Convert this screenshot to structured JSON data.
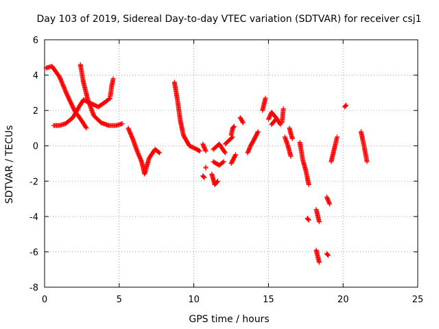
{
  "chart_data": {
    "type": "scatter",
    "title": "Day 103 of 2019, Sidereal Day-to-day VTEC variation (SDTVAR) for receiver csj1",
    "xlabel": "GPS time / hours",
    "ylabel": "SDTVAR / TECUs",
    "xlim": [
      0,
      25
    ],
    "ylim": [
      -8,
      6
    ],
    "xticks": [
      0,
      5,
      10,
      15,
      20,
      25
    ],
    "yticks": [
      -8,
      -6,
      -4,
      -2,
      0,
      2,
      4,
      6
    ],
    "grid": true,
    "marker": "+",
    "color": "#ff0000",
    "tracks": [
      {
        "x": [
          0.1,
          0.5,
          1.0,
          1.5,
          2.0,
          2.5,
          2.8
        ],
        "y": [
          4.4,
          4.5,
          3.9,
          2.9,
          2.0,
          1.4,
          1.0
        ]
      },
      {
        "x": [
          0.6,
          1.0,
          1.4,
          1.9,
          2.3,
          2.6
        ],
        "y": [
          1.15,
          1.15,
          1.25,
          1.6,
          2.2,
          2.6
        ]
      },
      {
        "x": [
          2.6,
          3.1,
          3.6,
          4.1,
          4.4
        ],
        "y": [
          2.6,
          2.4,
          2.2,
          2.5,
          2.7
        ]
      },
      {
        "x": [
          4.4,
          4.5,
          4.6
        ],
        "y": [
          2.8,
          3.4,
          3.8
        ]
      },
      {
        "x": [
          2.4,
          2.6,
          2.9,
          3.3,
          3.8,
          4.3,
          4.8,
          5.2
        ],
        "y": [
          4.6,
          3.6,
          2.6,
          1.7,
          1.3,
          1.15,
          1.15,
          1.25
        ]
      },
      {
        "x": [
          5.6,
          5.9,
          6.2,
          6.5,
          6.7,
          7.0,
          7.4,
          7.7
        ],
        "y": [
          1.0,
          0.4,
          -0.3,
          -0.9,
          -1.6,
          -0.7,
          -0.2,
          -0.4
        ]
      },
      {
        "x": [
          8.7,
          8.9,
          9.1,
          9.3,
          9.7,
          10.2,
          10.4
        ],
        "y": [
          3.6,
          2.6,
          1.4,
          0.6,
          0.0,
          -0.2,
          -0.3
        ]
      },
      {
        "x": [
          10.6,
          10.7
        ],
        "y": [
          -1.7,
          -1.8
        ]
      },
      {
        "x": [
          10.6,
          10.8
        ],
        "y": [
          0.1,
          -0.3
        ]
      },
      {
        "x": [
          10.8
        ],
        "y": [
          -1.2
        ]
      },
      {
        "x": [
          11.2,
          11.4,
          11.6
        ],
        "y": [
          -1.6,
          -2.2,
          -2.0
        ]
      },
      {
        "x": [
          11.3,
          11.7,
          12.0
        ],
        "y": [
          -0.9,
          -1.1,
          -0.9
        ]
      },
      {
        "x": [
          11.3,
          11.7,
          12.1
        ],
        "y": [
          -0.2,
          0.1,
          -0.4
        ]
      },
      {
        "x": [
          12.1,
          12.6
        ],
        "y": [
          0.1,
          0.5
        ]
      },
      {
        "x": [
          12.5,
          12.6,
          12.7
        ],
        "y": [
          0.6,
          1.0,
          1.1
        ]
      },
      {
        "x": [
          12.5,
          12.8
        ],
        "y": [
          -1.0,
          -0.5
        ]
      },
      {
        "x": [
          13.1,
          13.3
        ],
        "y": [
          1.6,
          1.3
        ]
      },
      {
        "x": [
          13.6,
          13.8,
          14.0,
          14.3
        ],
        "y": [
          -0.4,
          0.0,
          0.3,
          0.8
        ]
      },
      {
        "x": [
          14.6,
          14.8
        ],
        "y": [
          2.0,
          2.7
        ]
      },
      {
        "x": [
          15.0,
          15.2,
          15.5,
          15.8
        ],
        "y": [
          1.5,
          1.9,
          1.6,
          1.2
        ]
      },
      {
        "x": [
          15.2,
          15.5
        ],
        "y": [
          1.2,
          1.5
        ]
      },
      {
        "x": [
          15.9,
          16.0
        ],
        "y": [
          1.3,
          2.1
        ]
      },
      {
        "x": [
          16.1,
          16.3,
          16.5
        ],
        "y": [
          0.5,
          0.0,
          -0.6
        ]
      },
      {
        "x": [
          16.4,
          16.6
        ],
        "y": [
          1.0,
          0.4
        ]
      },
      {
        "x": [
          17.1,
          17.3,
          17.5,
          17.7
        ],
        "y": [
          0.2,
          -0.8,
          -1.4,
          -2.2
        ]
      },
      {
        "x": [
          17.6,
          17.7
        ],
        "y": [
          -4.1,
          -4.2
        ]
      },
      {
        "x": [
          18.2,
          18.4
        ],
        "y": [
          -3.6,
          -4.3
        ]
      },
      {
        "x": [
          18.2,
          18.4
        ],
        "y": [
          -5.9,
          -6.6
        ]
      },
      {
        "x": [
          18.9,
          19.1
        ],
        "y": [
          -2.9,
          -3.3
        ]
      },
      {
        "x": [
          18.9,
          19.0
        ],
        "y": [
          -6.1,
          -6.2
        ]
      },
      {
        "x": [
          19.2,
          19.4,
          19.6
        ],
        "y": [
          -0.9,
          -0.2,
          0.5
        ]
      },
      {
        "x": [
          20.1,
          20.2
        ],
        "y": [
          2.2,
          2.3
        ]
      },
      {
        "x": [
          21.2,
          21.4,
          21.6
        ],
        "y": [
          0.8,
          0.0,
          -0.9
        ]
      }
    ]
  }
}
